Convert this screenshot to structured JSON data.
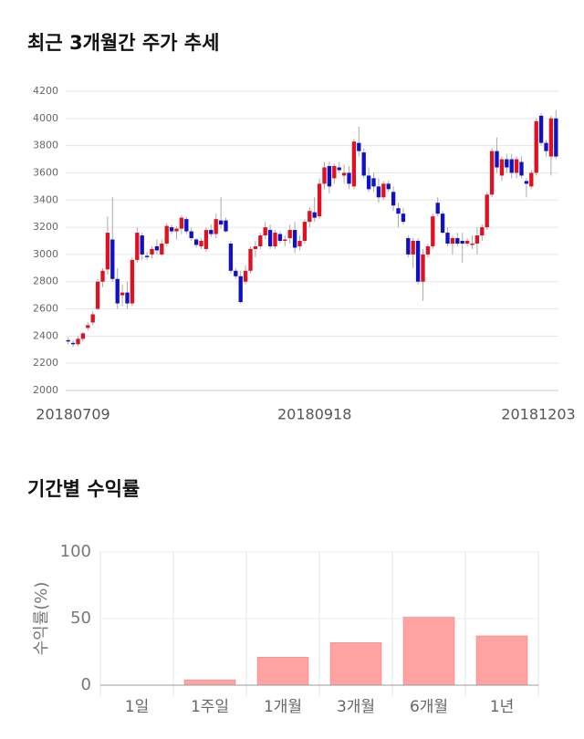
{
  "chart_data": [
    {
      "type": "candlestick",
      "title": "최근 3개월간 주가 추세",
      "categories": [
        "20180709",
        null,
        null,
        null,
        null,
        null,
        null,
        null,
        null,
        null,
        null,
        null,
        null,
        null,
        null,
        null,
        null,
        null,
        null,
        null,
        null,
        null,
        null,
        null,
        null,
        null,
        null,
        null,
        null,
        null,
        null,
        null,
        null,
        null,
        null,
        null,
        null,
        null,
        null,
        null,
        null,
        null,
        null,
        null,
        null,
        null,
        null,
        null,
        null,
        null,
        "20180918",
        null,
        null,
        null,
        null,
        null,
        null,
        null,
        null,
        null,
        null,
        null,
        null,
        null,
        null,
        null,
        null,
        null,
        null,
        null,
        null,
        null,
        null,
        null,
        null,
        null,
        null,
        null,
        null,
        null,
        null,
        null,
        null,
        null,
        null,
        null,
        null,
        null,
        null,
        null,
        null,
        null,
        null,
        null,
        null,
        null,
        null,
        null,
        null,
        "20181203"
      ],
      "open": [
        2370,
        2350,
        2340,
        2380,
        2460,
        2500,
        2600,
        2800,
        2890,
        3110,
        2820,
        2700,
        2720,
        2640,
        2960,
        3140,
        2990,
        3000,
        3060,
        3000,
        3080,
        3200,
        3170,
        3190,
        3260,
        3170,
        3110,
        3060,
        3040,
        3180,
        3150,
        3250,
        3250,
        3080,
        2880,
        2840,
        2800,
        2880,
        3040,
        3060,
        3140,
        3180,
        3060,
        3150,
        3100,
        3120,
        3180,
        3060,
        3100,
        3240,
        3310,
        3280,
        3520,
        3650,
        3560,
        3640,
        3580,
        3600,
        3500,
        3820,
        3750,
        3580,
        3560,
        3500,
        3420,
        3520,
        3460,
        3340,
        3300,
        3120,
        3000,
        3100,
        2800,
        3000,
        3060,
        3380,
        3300,
        3160,
        3080,
        3120,
        3100,
        3080,
        3070,
        3080,
        3140,
        3200,
        3440,
        3760,
        3580,
        3700,
        3700,
        3600,
        3680,
        3540,
        3500,
        3600,
        4020,
        3820,
        3720,
        4000
      ],
      "high": [
        2390,
        2370,
        2400,
        2430,
        2500,
        2580,
        2820,
        2900,
        3280,
        3420,
        2900,
        2780,
        2800,
        2980,
        3200,
        3160,
        3020,
        3060,
        3110,
        3110,
        3230,
        3220,
        3210,
        3290,
        3280,
        3200,
        3120,
        3120,
        3200,
        3220,
        3300,
        3420,
        3270,
        3100,
        2900,
        2880,
        2920,
        3060,
        3100,
        3160,
        3240,
        3220,
        3180,
        3170,
        3140,
        3220,
        3240,
        3140,
        3260,
        3350,
        3420,
        3560,
        3680,
        3680,
        3670,
        3680,
        3660,
        3650,
        3850,
        3940,
        3780,
        3640,
        3600,
        3560,
        3540,
        3540,
        3500,
        3380,
        3340,
        3140,
        3120,
        3120,
        3040,
        3080,
        3300,
        3420,
        3320,
        3200,
        3140,
        3160,
        3160,
        3120,
        3140,
        3200,
        3220,
        3460,
        3780,
        3860,
        3720,
        3740,
        3740,
        3720,
        3720,
        3560,
        3620,
        4000,
        4040,
        3840,
        4020,
        4060
      ],
      "low": [
        2340,
        2320,
        2330,
        2360,
        2440,
        2480,
        2590,
        2760,
        2850,
        2800,
        2600,
        2620,
        2600,
        2620,
        2940,
        2960,
        2960,
        2970,
        3000,
        2990,
        3060,
        3150,
        3110,
        3150,
        3150,
        3100,
        3050,
        3040,
        3020,
        3130,
        3120,
        3190,
        3160,
        2860,
        2820,
        2640,
        2780,
        2860,
        2980,
        3040,
        3110,
        3040,
        3040,
        3080,
        3060,
        3080,
        3010,
        3030,
        3080,
        3200,
        3240,
        3260,
        3480,
        3450,
        3520,
        3600,
        3520,
        3480,
        3480,
        3720,
        3560,
        3460,
        3460,
        3380,
        3400,
        3460,
        3320,
        3200,
        3220,
        2980,
        2900,
        2780,
        2660,
        2980,
        3040,
        3280,
        3150,
        3060,
        3000,
        3060,
        2940,
        3060,
        3040,
        3000,
        3100,
        3180,
        3420,
        3600,
        3540,
        3600,
        3560,
        3560,
        3560,
        3420,
        3480,
        3580,
        3800,
        3720,
        3580,
        3700
      ],
      "close": [
        2360,
        2340,
        2380,
        2420,
        2480,
        2560,
        2800,
        2880,
        3160,
        2820,
        2640,
        2720,
        2640,
        2960,
        3160,
        3000,
        2980,
        3040,
        3030,
        3080,
        3210,
        3170,
        3190,
        3270,
        3170,
        3120,
        3070,
        3100,
        3180,
        3150,
        3260,
        3220,
        3170,
        2880,
        2840,
        2650,
        2880,
        3040,
        3060,
        3140,
        3200,
        3060,
        3160,
        3100,
        3110,
        3180,
        3050,
        3100,
        3240,
        3320,
        3270,
        3520,
        3640,
        3500,
        3650,
        3620,
        3600,
        3520,
        3830,
        3760,
        3580,
        3480,
        3500,
        3420,
        3520,
        3480,
        3360,
        3300,
        3240,
        3000,
        3100,
        2800,
        3000,
        3060,
        3280,
        3300,
        3160,
        3080,
        3120,
        3080,
        3080,
        3100,
        3080,
        3140,
        3200,
        3440,
        3760,
        3640,
        3700,
        3640,
        3600,
        3700,
        3580,
        3520,
        3600,
        3980,
        3820,
        3760,
        4000,
        3720
      ],
      "up_color": "#e0101e",
      "down_color": "#1010c8",
      "ylim": [
        2000,
        4200
      ],
      "yticks": [
        2000,
        2200,
        2400,
        2600,
        2800,
        3000,
        3200,
        3400,
        3600,
        3800,
        4000,
        4200
      ],
      "grid": true
    },
    {
      "type": "bar",
      "title": "기간별 수익률",
      "y_label": "수익률(%)",
      "categories": [
        "1일",
        "1주일",
        "1개월",
        "3개월",
        "6개월",
        "1년"
      ],
      "values": [
        0,
        4,
        21,
        32,
        51,
        37
      ],
      "color": "#ffa3a3",
      "ylim": [
        0,
        100
      ],
      "yticks": [
        0,
        50,
        100
      ],
      "grid": true
    }
  ]
}
